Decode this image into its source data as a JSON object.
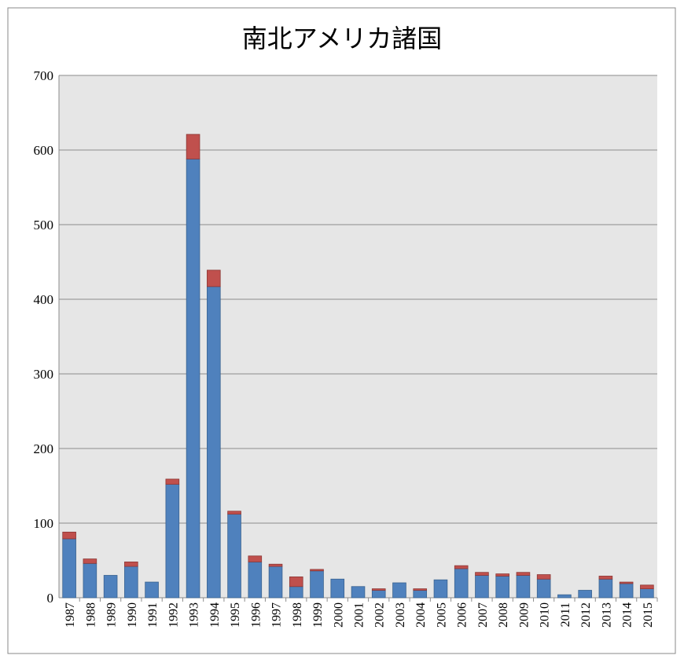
{
  "chart_data": {
    "type": "stacked_bar",
    "title": "南北アメリカ諸国",
    "categories": [
      "1987",
      "1988",
      "1989",
      "1990",
      "1991",
      "1992",
      "1993",
      "1994",
      "1995",
      "1996",
      "1997",
      "1998",
      "1999",
      "2000",
      "2001",
      "2002",
      "2003",
      "2004",
      "2005",
      "2006",
      "2007",
      "2008",
      "2009",
      "2010",
      "2011",
      "2012",
      "2013",
      "2014",
      "2015"
    ],
    "series": [
      {
        "color": "#4f81bd",
        "values": [
          79,
          46,
          30,
          42,
          21,
          152,
          588,
          417,
          112,
          48,
          42,
          15,
          36,
          25,
          15,
          10,
          20,
          10,
          24,
          39,
          30,
          29,
          30,
          25,
          4,
          10,
          25,
          19,
          12
        ]
      },
      {
        "color": "#c0504d",
        "values": [
          9,
          6,
          0,
          6,
          0,
          7,
          33,
          22,
          4,
          8,
          3,
          13,
          2,
          0,
          0,
          2,
          0,
          2,
          0,
          4,
          4,
          3,
          4,
          6,
          0,
          0,
          4,
          2,
          5
        ]
      }
    ],
    "ylim": [
      0,
      700
    ],
    "yticks": [
      0,
      100,
      200,
      300,
      400,
      500,
      600,
      700
    ],
    "grid": true
  }
}
